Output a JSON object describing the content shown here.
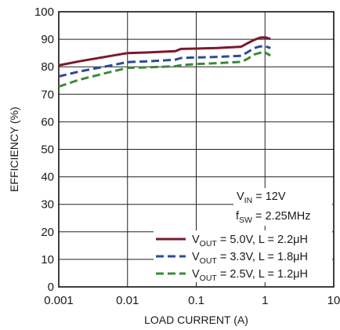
{
  "chart_data": {
    "type": "line",
    "x_scale": "log",
    "xlim": [
      0.001,
      10
    ],
    "ylim": [
      0,
      100
    ],
    "xlabel": "LOAD CURRENT (A)",
    "ylabel": "EFFICIENCY (%)",
    "x_ticks": [
      "0.001",
      "0.01",
      "0.1",
      "1",
      "10"
    ],
    "y_ticks": [
      "0",
      "10",
      "20",
      "30",
      "40",
      "50",
      "60",
      "70",
      "80",
      "90",
      "100"
    ],
    "grid": true,
    "annotation": {
      "line1": {
        "main": "V",
        "sub": "IN",
        "rest": " = 12V"
      },
      "line2": {
        "main": "f",
        "sub": "SW",
        "rest": " = 2.25MHz"
      }
    },
    "legend_position": "bottom-right",
    "series": [
      {
        "legend": {
          "main": "V",
          "sub": "OUT",
          "rest": " = 5.0V, L = 2.2μH"
        },
        "color": "#7a1a2e",
        "dash": "solid",
        "x": [
          0.001,
          0.002,
          0.005,
          0.01,
          0.02,
          0.05,
          0.06,
          0.1,
          0.2,
          0.45,
          0.55,
          0.7,
          0.85,
          1.0,
          1.2
        ],
        "y": [
          80.5,
          82.0,
          83.7,
          85.0,
          85.2,
          85.7,
          86.5,
          86.6,
          86.8,
          87.3,
          88.5,
          89.8,
          90.6,
          90.7,
          90.1
        ]
      },
      {
        "legend": {
          "main": "V",
          "sub": "OUT",
          "rest": " = 3.3V, L = 1.8μH"
        },
        "color": "#2a4c9a",
        "dash": "dashed",
        "x": [
          0.001,
          0.002,
          0.005,
          0.01,
          0.02,
          0.05,
          0.06,
          0.1,
          0.2,
          0.45,
          0.55,
          0.7,
          0.85,
          1.0,
          1.2
        ],
        "y": [
          76.5,
          78.3,
          80.2,
          81.7,
          82.0,
          82.6,
          83.2,
          83.4,
          83.6,
          84.0,
          85.2,
          86.8,
          87.4,
          87.5,
          86.8
        ]
      },
      {
        "legend": {
          "main": "V",
          "sub": "OUT",
          "rest": " = 2.5V, L = 1.2μH"
        },
        "color": "#3a8a3a",
        "dash": "dashed",
        "x": [
          0.001,
          0.002,
          0.005,
          0.01,
          0.02,
          0.05,
          0.06,
          0.1,
          0.2,
          0.45,
          0.55,
          0.7,
          0.85,
          1.0,
          1.2
        ],
        "y": [
          72.8,
          75.3,
          77.8,
          79.6,
          79.8,
          80.2,
          80.6,
          81.0,
          81.3,
          81.8,
          82.8,
          84.5,
          85.1,
          85.2,
          84.1
        ]
      }
    ]
  }
}
